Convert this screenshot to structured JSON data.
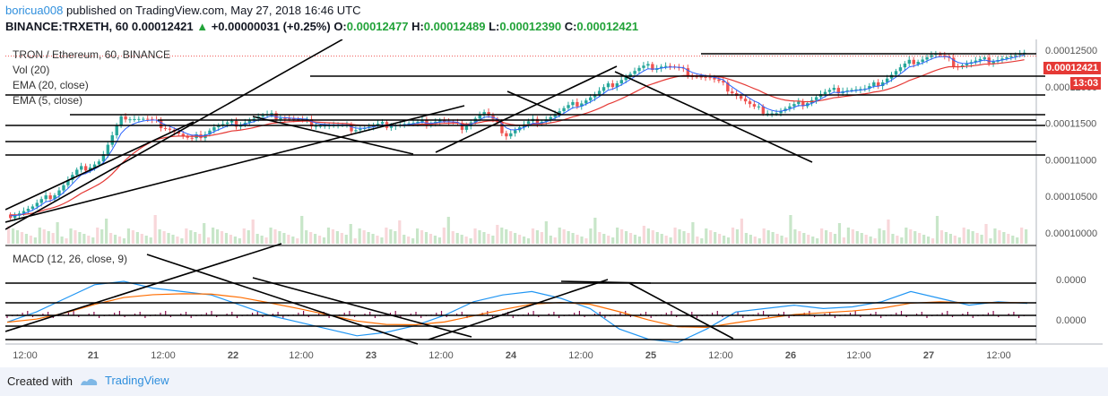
{
  "header": {
    "user": "boricua008",
    "published": " published on TradingView.com, May 27, 2018 16:46 UTC",
    "symbol": "BINANCE:TRXETH, 60",
    "last": "0.00012421",
    "change": "+0.00000031 (+0.25%)",
    "o_label": "O:",
    "o": "0.00012477",
    "h_label": "H:",
    "h": "0.00012489",
    "l_label": "L:",
    "l": "0.00012390",
    "c_label": "C:",
    "c": "0.00012421"
  },
  "legend": {
    "title": "TRON / Ethereum, 60, BINANCE",
    "vol": "Vol (20)",
    "ema20": "EMA (20, close)",
    "ema5": "EMA (5, close)",
    "macd": "MACD (12, 26, close, 9)"
  },
  "price_tag": {
    "value": "0.00012421",
    "time": "13:03"
  },
  "footer": {
    "created": "Created with",
    "brand": "TradingView"
  },
  "colors": {
    "up": "#26a69a",
    "down": "#ef5350",
    "ema20": "#e53935",
    "ema5": "#2962ff",
    "macd": "#2196f3",
    "signal": "#ff6d00",
    "hist": "#880e4f"
  },
  "chart_data": {
    "type": "candlestick",
    "symbol": "TRXETH",
    "y_ticks": [
      "0.00012500",
      "0.00012000",
      "0.00011500",
      "0.00011000",
      "0.00010500",
      "0.00010000"
    ],
    "y_tick_values": [
      0.000125,
      0.00012,
      0.000115,
      0.00011,
      0.000105,
      0.0001
    ],
    "ylim": [
      9.85e-05,
      0.0001265
    ],
    "macd_ticks": [
      "0.0000",
      "0.0000"
    ],
    "x_ticks": [
      "12:00",
      "21",
      "12:00",
      "22",
      "12:00",
      "23",
      "12:00",
      "24",
      "12:00",
      "25",
      "12:00",
      "26",
      "12:00",
      "27",
      "12:00"
    ],
    "close_path": [
      0.0001025,
      0.0001035,
      0.0001055,
      0.0001085,
      0.00011,
      0.000116,
      0.0001155,
      0.0001145,
      0.0001125,
      0.0001145,
      0.000115,
      0.0001158,
      0.000116,
      0.0001152,
      0.0001148,
      0.0001143,
      0.0001145,
      0.000115,
      0.0001148,
      0.0001155,
      0.0001145,
      0.0001165,
      0.0001135,
      0.000115,
      0.000116,
      0.0001175,
      0.000119,
      0.000121,
      0.0001225,
      0.000123,
      0.000122,
      0.0001212,
      0.0001195,
      0.000117,
      0.0001165,
      0.0001175,
      0.000119,
      0.0001198,
      0.0001195,
      0.0001215,
      0.0001235,
      0.0001245,
      0.000123,
      0.0001235,
      0.000124,
      0.0001242
    ],
    "macd_path": [
      -0.2,
      0.1,
      0.5,
      0.9,
      1.0,
      0.8,
      0.7,
      0.6,
      0.3,
      0.0,
      -0.2,
      -0.4,
      -0.6,
      -0.5,
      -0.3,
      0.0,
      0.4,
      0.6,
      0.7,
      0.5,
      0.2,
      -0.4,
      -0.7,
      -0.8,
      -0.4,
      0.1,
      0.2,
      0.3,
      0.2,
      0.25,
      0.4,
      0.7,
      0.5,
      0.3,
      0.4,
      0.35
    ]
  }
}
